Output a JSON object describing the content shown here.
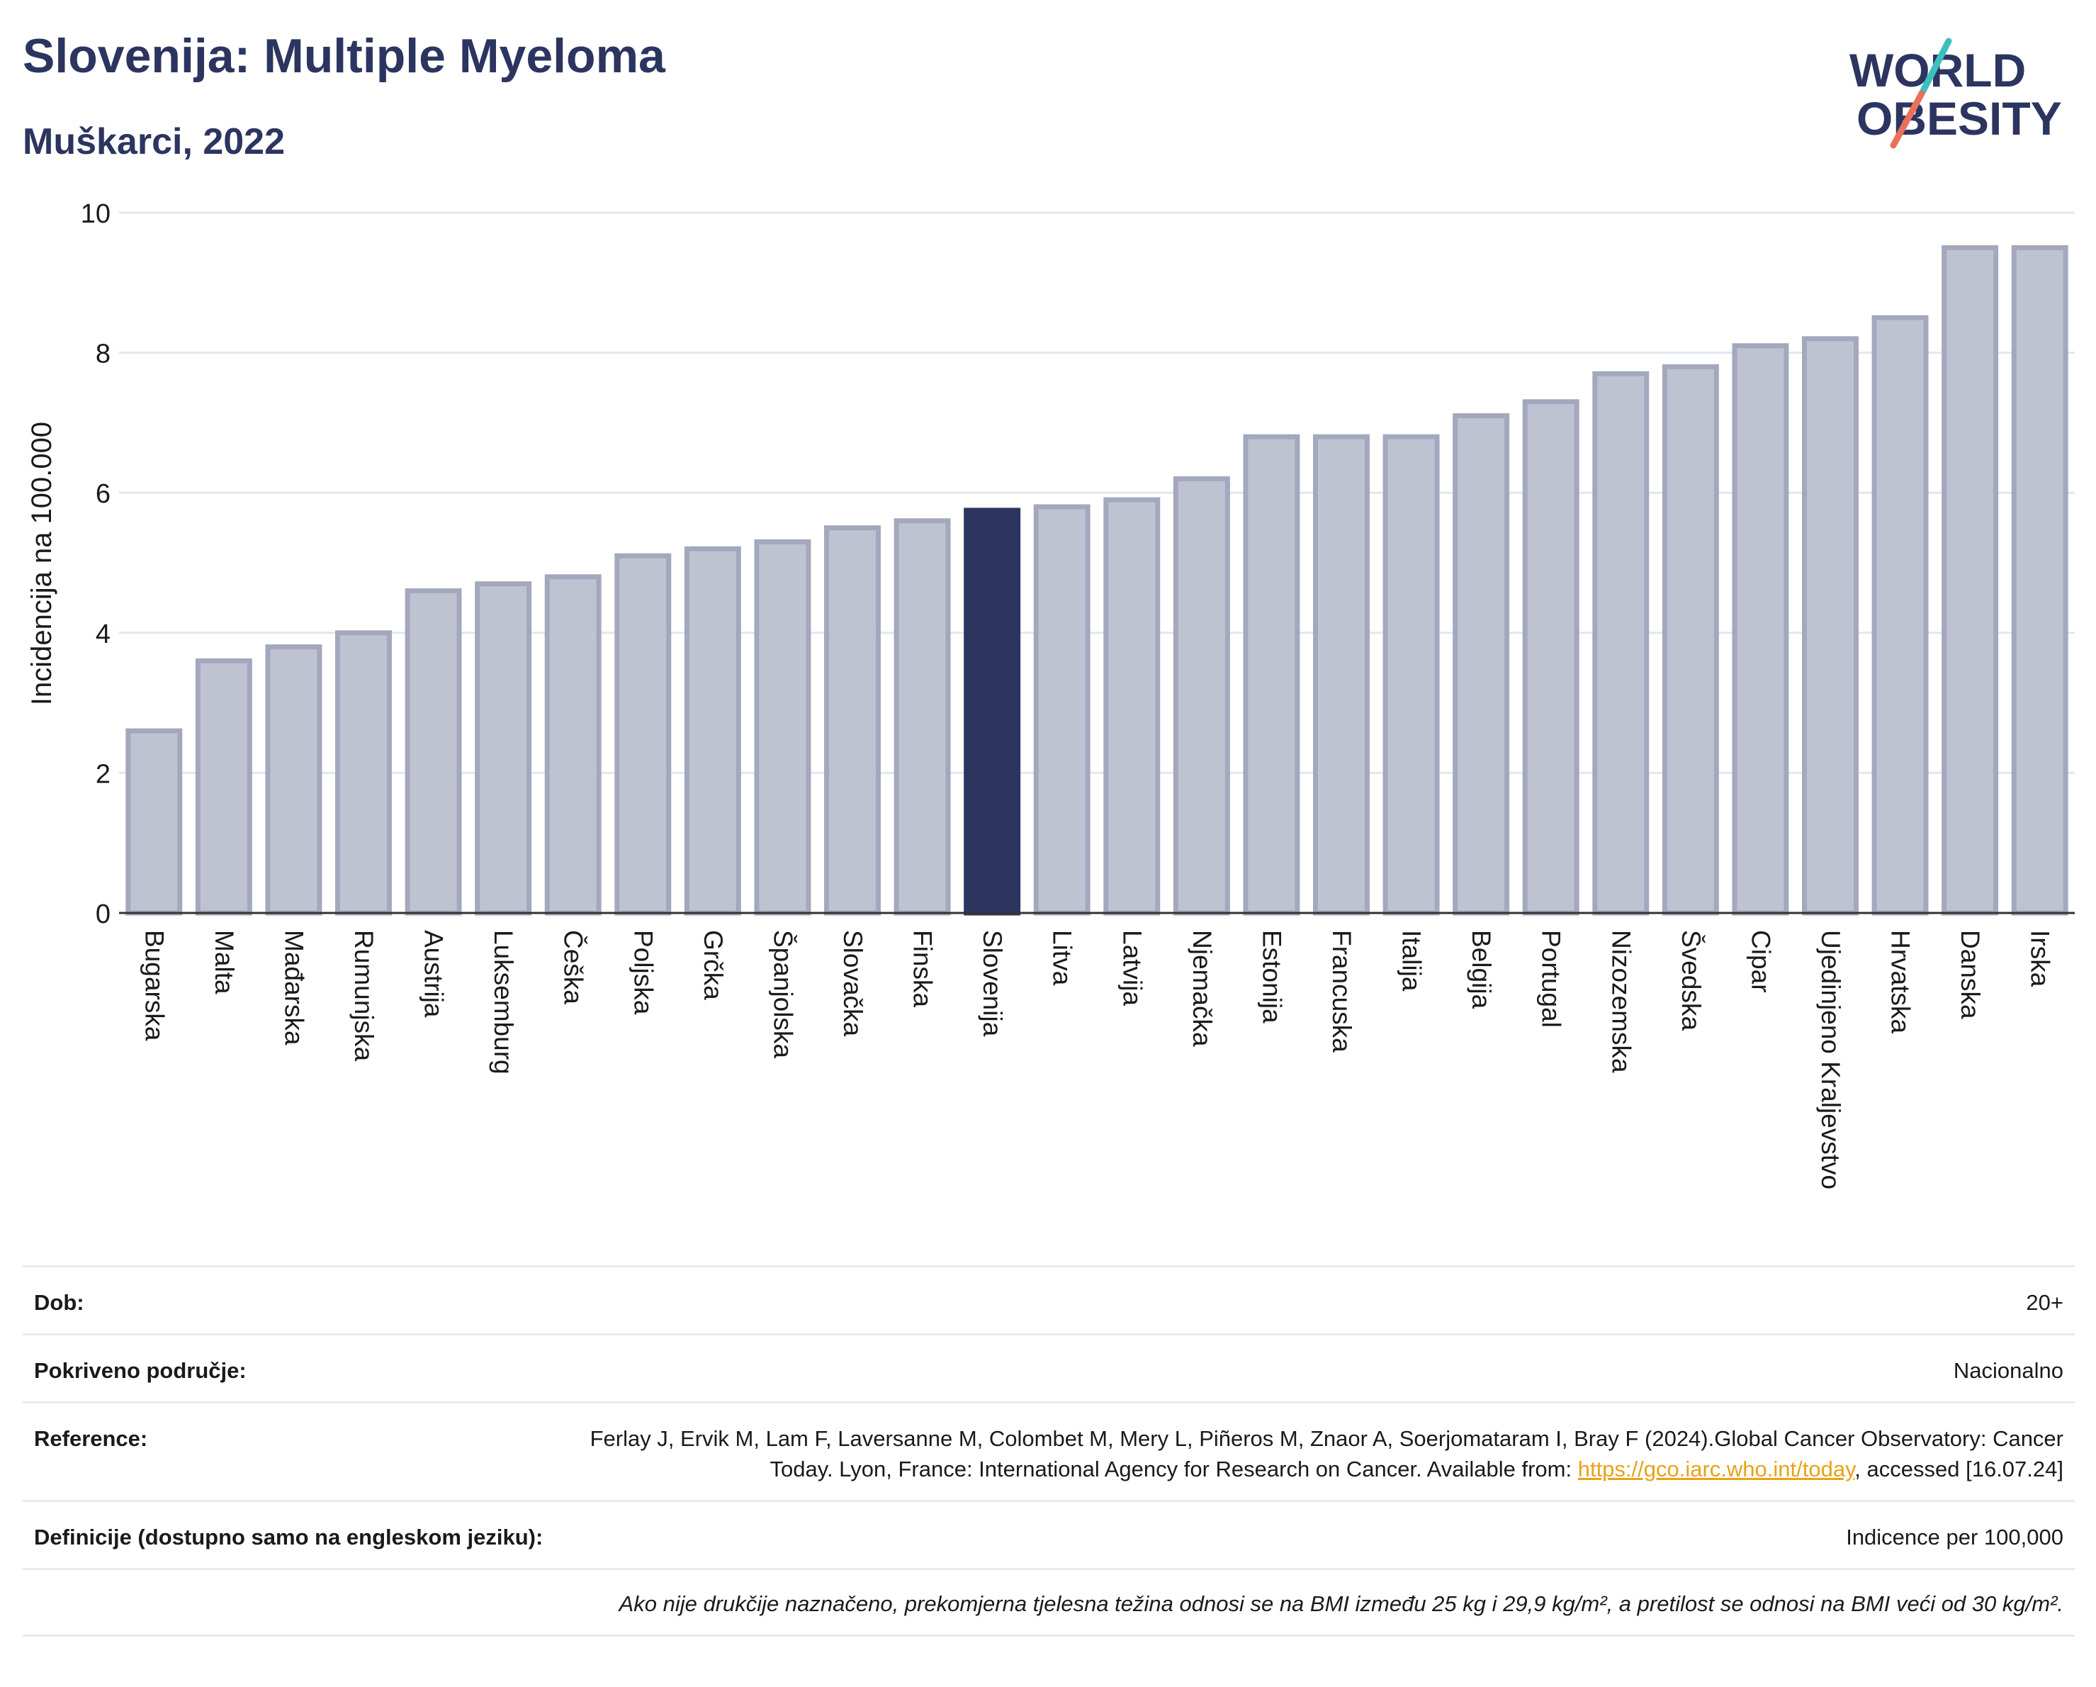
{
  "header": {
    "title": "Slovenija: Multiple Myeloma",
    "subtitle": "Muškarci, 2022"
  },
  "logo": {
    "line1": "WORLD",
    "line2": "OBESITY"
  },
  "colors": {
    "highlight": "#2c3560",
    "bar": "#bfc3d1",
    "bar_border": "#a3a8be",
    "title": "#2c3560"
  },
  "chart_data": {
    "type": "bar",
    "categories": [
      "Bugarska",
      "Malta",
      "Mađarska",
      "Rumunjska",
      "Austrija",
      "Luksemburg",
      "Češka",
      "Poljska",
      "Grčka",
      "Španjolska",
      "Slovačka",
      "Finska",
      "Slovenija",
      "Litva",
      "Latvija",
      "Njemačka",
      "Estonija",
      "Francuska",
      "Italija",
      "Belgija",
      "Portugal",
      "Nizozemska",
      "Švedska",
      "Cipar",
      "Ujedinjeno Kraljevstvo",
      "Hrvatska",
      "Danska",
      "Irska"
    ],
    "values": [
      2.6,
      3.6,
      3.8,
      4.0,
      4.6,
      4.7,
      4.8,
      5.1,
      5.2,
      5.3,
      5.5,
      5.6,
      5.75,
      5.8,
      5.9,
      6.2,
      6.8,
      6.8,
      6.8,
      7.1,
      7.3,
      7.7,
      7.8,
      8.1,
      8.2,
      8.5,
      9.5,
      9.5
    ],
    "highlight": "Slovenija",
    "ylabel": "Incidencija na 100.000",
    "xlabel": "",
    "ylim": [
      0,
      10
    ],
    "yticks": [
      0,
      2,
      4,
      6,
      8,
      10
    ],
    "grid": true
  },
  "info": {
    "rows": [
      {
        "label": "Dob:",
        "value": "20+"
      },
      {
        "label": "Pokriveno područje:",
        "value": "Nacionalno"
      },
      {
        "label": "Reference:",
        "value_pre": "Ferlay J, Ervik M, Lam F, Laversanne M, Colombet M, Mery L, Piñeros M, Znaor A, Soerjomataram I, Bray F (2024).Global Cancer Observatory: Cancer Today. Lyon, France: International Agency for Research on Cancer. Available from: ",
        "link": "https://gco.iarc.who.int/today",
        "value_post": ", accessed [16.07.24]"
      },
      {
        "label": "Definicije (dostupno samo na engleskom jeziku):",
        "value": "Indicence per 100,000"
      }
    ],
    "note": "Ako nije drukčije naznačeno, prekomjerna tjelesna težina odnosi se na BMI između 25 kg i 29,9 kg/m², a pretilost se odnosi na BMI veći od 30 kg/m²."
  }
}
